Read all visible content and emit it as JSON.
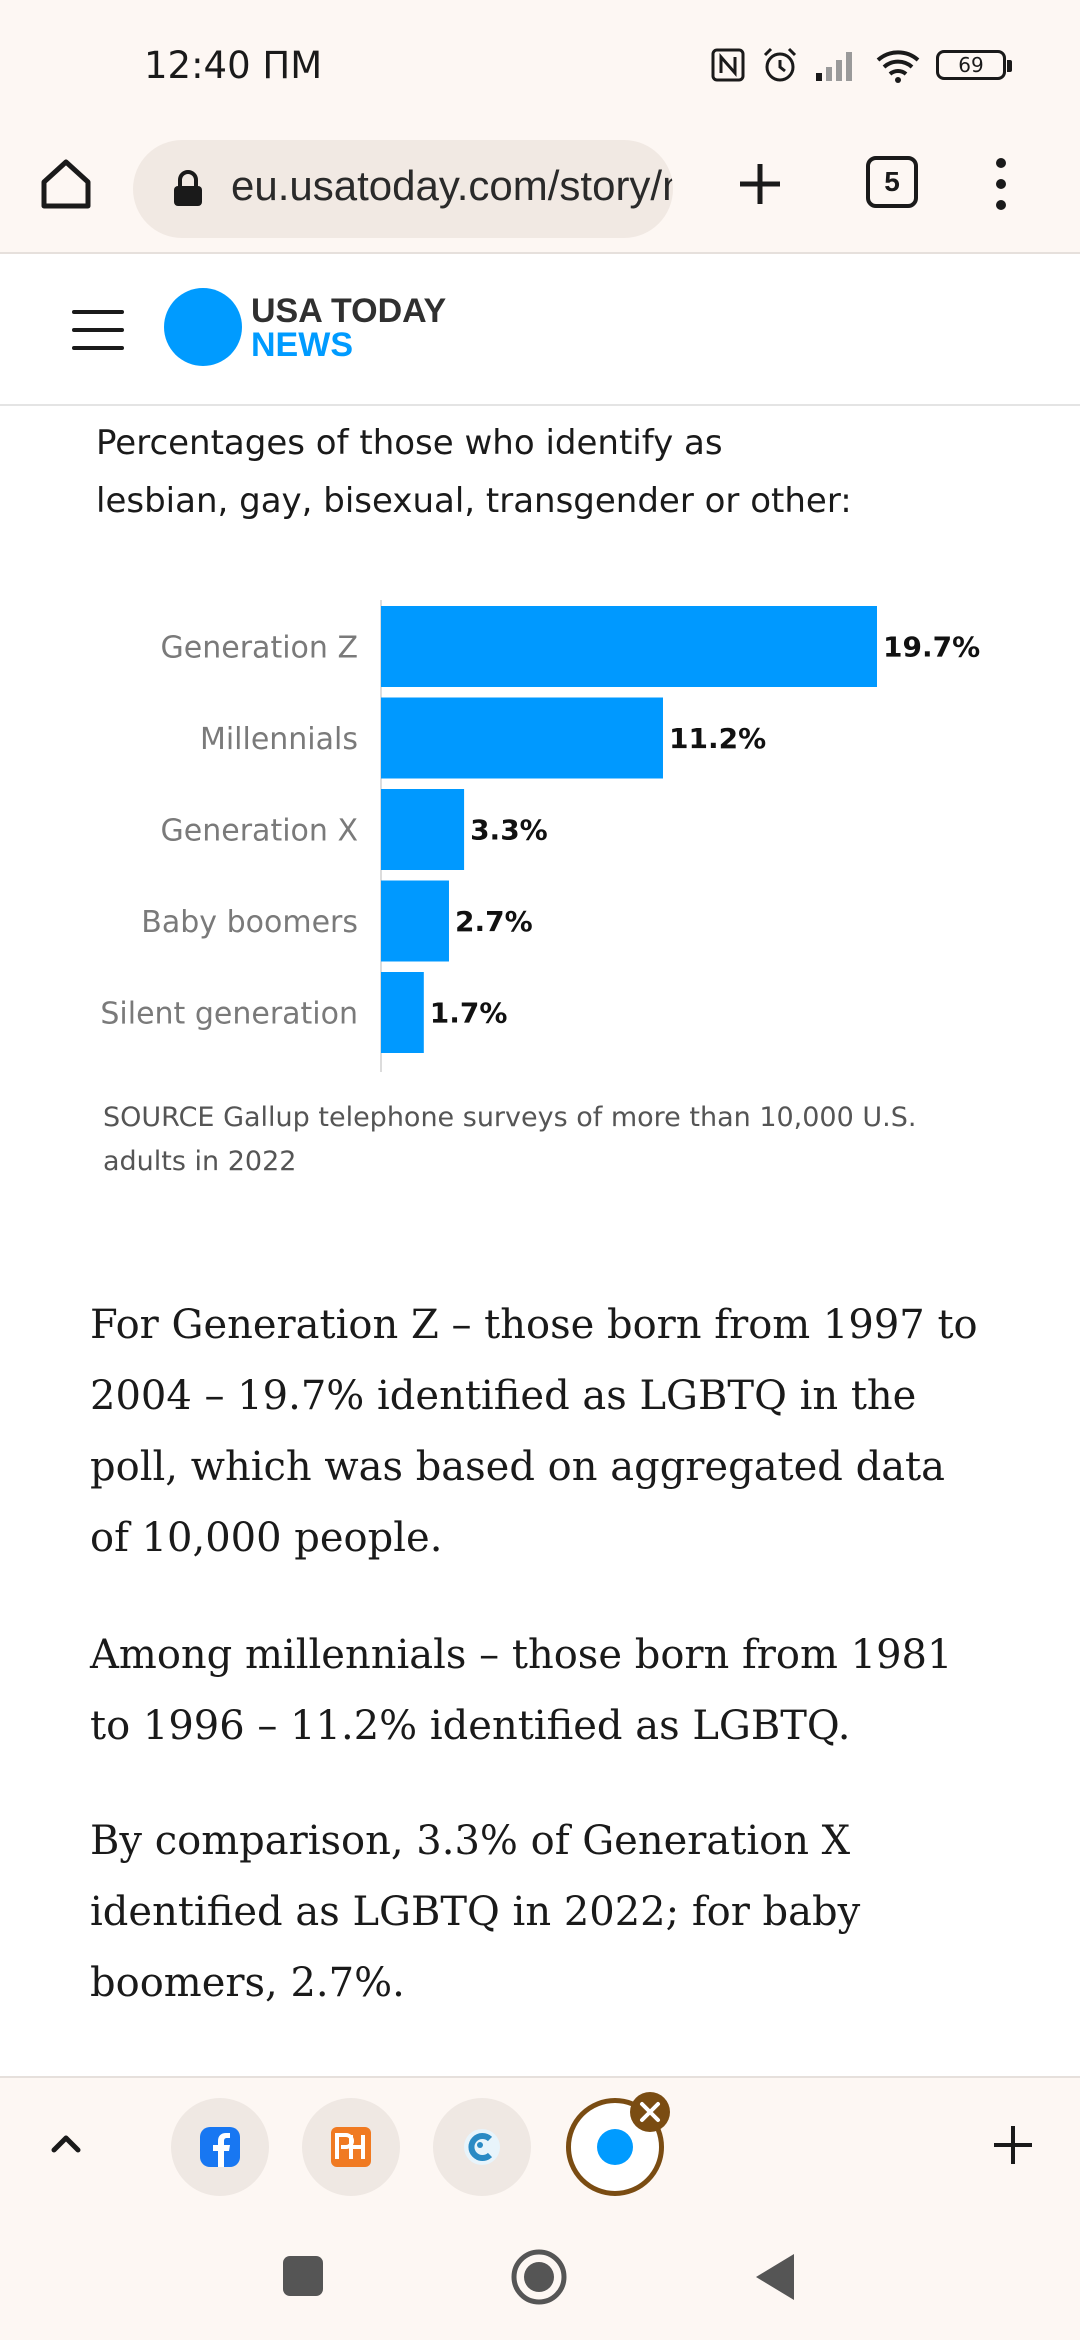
{
  "status_bar": {
    "time": "12:40 ПМ",
    "battery": "69"
  },
  "browser": {
    "url": "eu.usatoday.com/story/news",
    "tab_count": "5"
  },
  "site": {
    "logo_line1": "USA TODAY",
    "logo_line2": "NEWS",
    "brand_color": "#009bff"
  },
  "chart_caption": "Percentages of those who identify as lesbian, gay, bisexual, transgender or other:",
  "chart_data": {
    "type": "bar",
    "orientation": "horizontal",
    "categories": [
      "Generation Z",
      "Millennials",
      "Generation X",
      "Baby boomers",
      "Silent generation"
    ],
    "values": [
      19.7,
      11.2,
      3.3,
      2.7,
      1.7
    ],
    "value_labels": [
      "19.7%",
      "11.2%",
      "3.3%",
      "2.7%",
      "1.7%"
    ],
    "xlim": [
      0,
      19.7
    ],
    "bar_color": "#0099ff",
    "title": "Percentages of those who identify as lesbian, gay, bisexual, transgender or other:"
  },
  "chart_source": "SOURCE Gallup telephone surveys of more than 10,000 U.S. adults in 2022",
  "article": {
    "paragraphs": [
      "For Generation Z – those born from 1997 to 2004 – 19.7% identified as LGBTQ in the poll, which was based on aggregated data of 10,000 people.",
      "Among millennials – those born from 1981 to 1996 – 11.2% identified as LGBTQ.",
      "By comparison, 3.3% of Generation X identified as LGBTQ in 2022; for baby boomers, 2.7%."
    ]
  },
  "tab_strip": {
    "tabs": [
      "facebook-tab",
      "ph-tab",
      "app-tab",
      "usa-today-tab"
    ],
    "active_tab_label": "USA TODAY"
  }
}
